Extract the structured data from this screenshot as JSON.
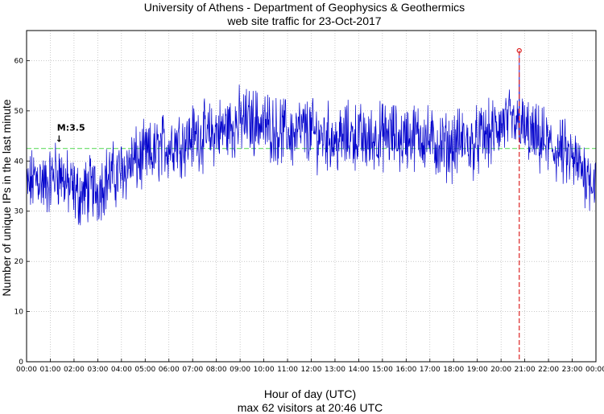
{
  "chart_data": {
    "type": "line",
    "title": "University of Athens - Department of Geophysics & Geothermics",
    "subtitle": "web site traffic for 23-Oct-2017",
    "xlabel": "Hour of day (UTC)",
    "footer": "max 62 visitors at 20:46 UTC",
    "ylabel": "Number of unique IPs in the last minute",
    "xlim": [
      0,
      24
    ],
    "ylim": [
      0,
      66
    ],
    "grid": true,
    "x_ticks": [
      "00:00",
      "01:00",
      "02:00",
      "03:00",
      "04:00",
      "05:00",
      "06:00",
      "07:00",
      "08:00",
      "09:00",
      "10:00",
      "11:00",
      "12:00",
      "13:00",
      "14:00",
      "15:00",
      "16:00",
      "17:00",
      "18:00",
      "19:00",
      "20:00",
      "21:00",
      "22:00",
      "23:00",
      "00:00"
    ],
    "y_ticks": [
      0,
      10,
      20,
      30,
      40,
      50,
      60
    ],
    "mean_line": {
      "y": 42.5,
      "color": "#66dd66"
    },
    "max_point": {
      "x": 20.767,
      "y": 62,
      "color": "#dd2222"
    },
    "annotation": {
      "x": 1.35,
      "y": 43.5,
      "label": "M:3.5"
    },
    "series": [
      {
        "color": "#0000cc",
        "x": [
          0,
          0.25,
          0.5,
          0.75,
          1,
          1.25,
          1.5,
          1.75,
          2,
          2.25,
          2.5,
          2.75,
          3,
          3.25,
          3.5,
          3.75,
          4,
          4.25,
          4.5,
          4.75,
          5,
          5.25,
          5.5,
          5.75,
          6,
          6.25,
          6.5,
          6.75,
          7,
          7.25,
          7.5,
          7.75,
          8,
          8.25,
          8.5,
          8.75,
          9,
          9.25,
          9.5,
          9.75,
          10,
          10.25,
          10.5,
          10.75,
          11,
          11.25,
          11.5,
          11.75,
          12,
          12.25,
          12.5,
          12.75,
          13,
          13.25,
          13.5,
          13.75,
          14,
          14.25,
          14.5,
          14.75,
          15,
          15.25,
          15.5,
          15.75,
          16,
          16.25,
          16.5,
          16.75,
          17,
          17.25,
          17.5,
          17.75,
          18,
          18.25,
          18.5,
          18.75,
          19,
          19.25,
          19.5,
          19.75,
          20,
          20.25,
          20.5,
          20.75,
          21,
          21.25,
          21.5,
          21.75,
          22,
          22.25,
          22.5,
          22.75,
          23,
          23.25,
          23.5,
          23.75,
          24
        ],
        "y": [
          34,
          36,
          37,
          35,
          36,
          38,
          37,
          35,
          34,
          33,
          34,
          35,
          34,
          36,
          37,
          37,
          38,
          39,
          40,
          40,
          41,
          41,
          42,
          43,
          43,
          44,
          44,
          44,
          45,
          45,
          45,
          45,
          46,
          46,
          47,
          47,
          48,
          48,
          48,
          48,
          47,
          47,
          46,
          46,
          46,
          45,
          46,
          46,
          46,
          45,
          45,
          45,
          44,
          44,
          45,
          45,
          45,
          44,
          44,
          45,
          45,
          45,
          45,
          44,
          45,
          45,
          45,
          45,
          44,
          43,
          43,
          43,
          43,
          44,
          44,
          43,
          44,
          45,
          45,
          46,
          47,
          48,
          47,
          47,
          46,
          45,
          44,
          44,
          43,
          42,
          42,
          41,
          40,
          39,
          38,
          37,
          36
        ]
      }
    ]
  }
}
